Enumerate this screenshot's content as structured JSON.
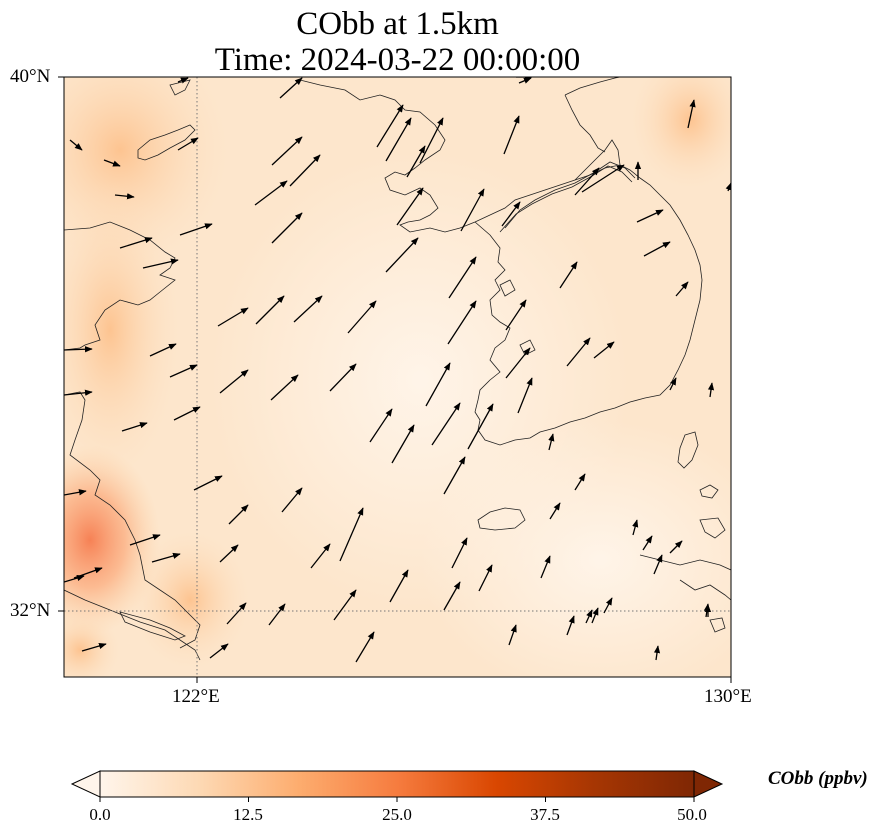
{
  "title_line1": "CObb at 1.5km",
  "title_line2": "Time: 2024-03-22 00:00:00",
  "axes": {
    "lat_labels": [
      "40°N",
      "32°N"
    ],
    "lon_labels": [
      "122°E",
      "130°E"
    ]
  },
  "colorbar": {
    "label": "CObb (ppbv)",
    "ticks": [
      "0.0",
      "12.5",
      "25.0",
      "37.5",
      "50.0"
    ],
    "colormap": [
      "#fff5eb",
      "#fdd9b4",
      "#fdad6f",
      "#f67c3f",
      "#d94701",
      "#a63603",
      "#7f2704"
    ]
  }
}
